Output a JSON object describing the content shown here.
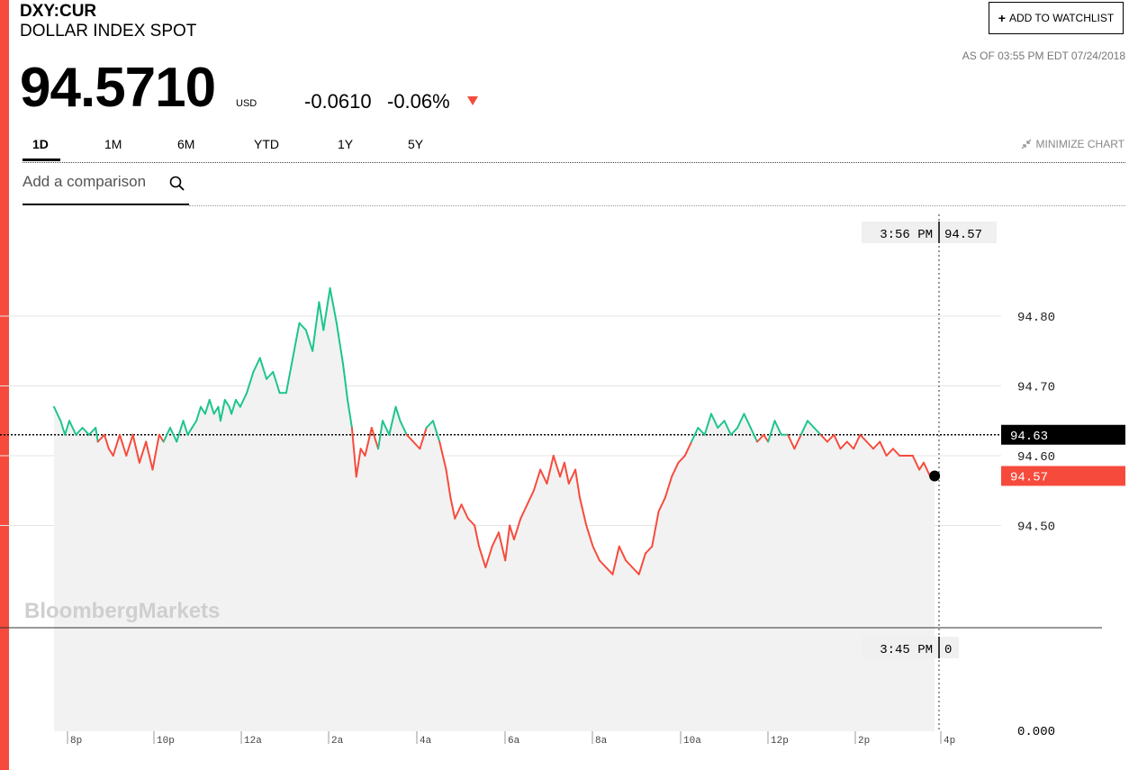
{
  "header": {
    "ticker": "DXY:CUR",
    "name": "DOLLAR INDEX SPOT",
    "price": "94.5710",
    "currency": "USD",
    "change": "-0.0610",
    "change_pct": "-0.06%",
    "watchlist_label": "ADD TO WATCHLIST",
    "as_of": "AS OF 03:55 PM EDT 07/24/2018"
  },
  "tabs": [
    {
      "label": "1D",
      "active": true
    },
    {
      "label": "1M"
    },
    {
      "label": "6M"
    },
    {
      "label": "YTD"
    },
    {
      "label": "1Y"
    },
    {
      "label": "5Y"
    }
  ],
  "minimize_label": "MINIMIZE CHART",
  "compare_placeholder": "Add a comparison",
  "watermark": "BloombergMarkets",
  "colors": {
    "up": "#1cc58a",
    "down": "#f64b3c",
    "accent_bar": "#f64b3c"
  },
  "chart_data": {
    "type": "line",
    "xlabel": "",
    "ylabel": "",
    "x_ticks": [
      "8p",
      "10p",
      "12a",
      "2a",
      "4a",
      "6a",
      "8a",
      "10a",
      "12p",
      "2p",
      "4p"
    ],
    "y_ticks": [
      "94.80",
      "94.70",
      "94.60",
      "94.50"
    ],
    "ylim": [
      94.39,
      94.9
    ],
    "reference_close": 94.63,
    "reference_label": "94.63",
    "last_label": "94.57",
    "crosshair_time": "3:56 PM",
    "crosshair_value": "94.57",
    "volume_time": "3:45 PM",
    "volume_value": "0",
    "volume_axis_label": "0.000",
    "series": [
      {
        "x_hours": [
          0,
          0.3,
          0.5,
          0.7,
          1.0,
          1.3,
          1.6,
          1.9,
          2.0,
          2.3,
          2.5,
          2.7,
          3.0,
          3.3,
          3.6,
          3.9,
          4.2,
          4.5,
          4.8,
          5.0,
          5.3,
          5.6,
          5.9,
          6.1,
          6.3,
          6.5,
          6.7,
          6.9,
          7.1,
          7.3,
          7.5,
          7.6,
          7.8,
          8.0,
          8.1,
          8.3,
          8.5,
          8.8,
          9.1,
          9.4,
          9.7,
          10.0,
          10.3,
          10.6,
          10.9,
          11.2,
          11.5,
          11.8,
          12.1,
          12.3,
          12.6,
          12.9,
          13.2,
          13.4,
          13.6,
          13.8,
          14.0,
          14.2,
          14.5,
          14.8,
          15.0,
          15.3,
          15.6,
          15.8,
          16.1,
          16.4,
          16.7,
          17.0,
          17.3,
          17.6,
          17.9,
          18.1,
          18.3,
          18.6,
          18.9,
          19.2,
          19.4,
          19.7,
          20.0,
          20.3,
          20.6,
          20.8,
          21.0,
          21.3,
          21.6,
          21.9,
          22.2,
          22.5,
          22.8,
          23.1,
          23.3,
          23.5,
          23.8,
          24.0,
          24.3,
          24.6,
          24.9,
          25.2,
          25.5,
          25.8,
          26.1,
          26.4,
          26.7,
          27.0,
          27.3,
          27.6,
          27.9,
          28.2,
          28.5,
          28.8,
          29.1,
          29.4,
          29.7,
          30.0,
          30.3,
          30.6,
          30.9,
          31.2,
          31.5,
          31.8,
          32.1,
          32.4,
          32.6,
          32.9,
          33.2,
          33.5,
          33.8,
          34.1,
          34.4,
          34.7,
          35.0,
          35.3,
          35.6,
          35.9,
          36.2,
          36.5,
          36.8,
          37.1,
          37.4,
          37.7,
          38.0,
          38.3,
          38.6,
          38.9,
          39.2,
          39.5,
          39.7,
          40.0,
          40.2
        ],
        "values": [
          94.67,
          94.65,
          94.63,
          94.65,
          94.63,
          94.64,
          94.63,
          94.64,
          94.62,
          94.63,
          94.61,
          94.6,
          94.63,
          94.6,
          94.63,
          94.59,
          94.62,
          94.58,
          94.63,
          94.62,
          94.64,
          94.62,
          94.65,
          94.63,
          94.64,
          94.65,
          94.67,
          94.66,
          94.68,
          94.66,
          94.67,
          94.65,
          94.68,
          94.67,
          94.66,
          94.68,
          94.67,
          94.69,
          94.72,
          94.74,
          94.71,
          94.72,
          94.69,
          94.69,
          94.74,
          94.79,
          94.78,
          94.75,
          94.82,
          94.78,
          94.84,
          94.79,
          94.73,
          94.68,
          94.64,
          94.57,
          94.61,
          94.6,
          94.64,
          94.61,
          94.65,
          94.63,
          94.67,
          94.65,
          94.63,
          94.62,
          94.61,
          94.64,
          94.65,
          94.62,
          94.58,
          94.54,
          94.51,
          94.53,
          94.51,
          94.5,
          94.47,
          94.44,
          94.47,
          94.49,
          94.45,
          94.5,
          94.48,
          94.51,
          94.53,
          94.55,
          94.58,
          94.56,
          94.6,
          94.57,
          94.59,
          94.56,
          94.58,
          94.54,
          94.5,
          94.47,
          94.45,
          94.44,
          94.43,
          94.47,
          94.45,
          94.44,
          94.43,
          94.46,
          94.47,
          94.52,
          94.54,
          94.57,
          94.59,
          94.6,
          94.62,
          94.64,
          94.63,
          94.66,
          94.64,
          94.65,
          94.63,
          94.64,
          94.66,
          94.64,
          94.62,
          94.63,
          94.62,
          94.65,
          94.63,
          94.63,
          94.61,
          94.63,
          94.65,
          94.64,
          94.63,
          94.62,
          94.63,
          94.61,
          94.62,
          94.61,
          94.63,
          94.62,
          94.61,
          94.62,
          94.6,
          94.61,
          94.6,
          94.6,
          94.6,
          94.58,
          94.59,
          94.57,
          94.571
        ]
      }
    ]
  }
}
